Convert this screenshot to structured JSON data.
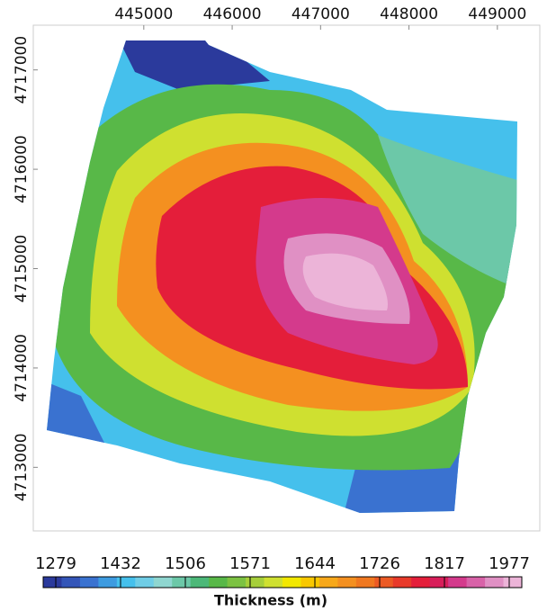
{
  "chart_data": {
    "type": "contour",
    "xlim": [
      443750,
      449480
    ],
    "xticks": [
      445000,
      446000,
      447000,
      448000,
      449000
    ],
    "ylim": [
      4712360,
      4717450
    ],
    "yticks": [
      4713000,
      4714000,
      4715000,
      4716000,
      4717000
    ],
    "colorbar": {
      "label": "Thickness (m)",
      "ticks": [
        1279,
        1432,
        1506,
        1571,
        1644,
        1726,
        1817,
        1977
      ],
      "colors": [
        "#2b3a9c",
        "#3355b8",
        "#3a72d0",
        "#3d9be0",
        "#45c0ec",
        "#6fcde6",
        "#8fd6d0",
        "#6cc8a8",
        "#4cb878",
        "#58b848",
        "#7cc242",
        "#a6cf3a",
        "#cfe030",
        "#f2e800",
        "#f8c800",
        "#f7a81a",
        "#f49020",
        "#f07820",
        "#ec5a24",
        "#e83a2a",
        "#e41e3a",
        "#d81e5a",
        "#d43a8c",
        "#d862a8",
        "#e090c4",
        "#ecb4d8"
      ]
    }
  }
}
